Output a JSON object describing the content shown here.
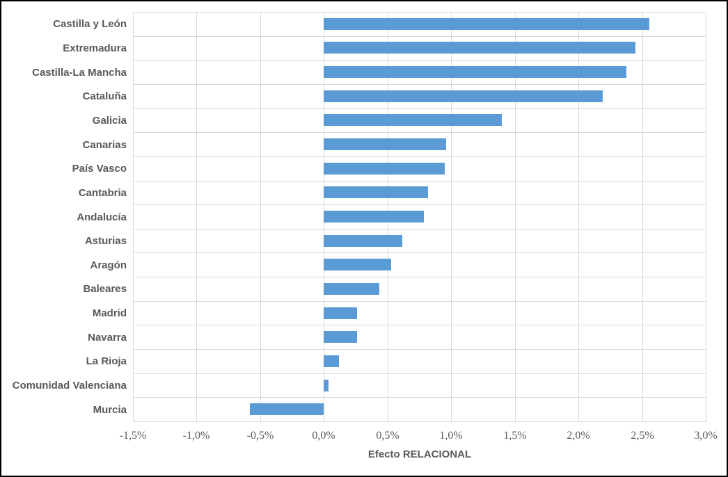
{
  "chart_data": {
    "type": "bar",
    "orientation": "horizontal",
    "title": "",
    "xlabel": "Efecto RELACIONAL",
    "ylabel": "",
    "unit": "%",
    "decimal_separator": ",",
    "categories": [
      "Castilla y León",
      "Extremadura",
      "Castilla-La Mancha",
      "Cataluña",
      "Galicia",
      "Canarias",
      "País Vasco",
      "Cantabria",
      "Andalucía",
      "Asturias",
      "Aragón",
      "Baleares",
      "Madrid",
      "Navarra",
      "La Rioja",
      "Comunidad Valenciana",
      "Murcia"
    ],
    "values": [
      2.56,
      2.45,
      2.38,
      2.19,
      1.4,
      0.96,
      0.95,
      0.82,
      0.79,
      0.62,
      0.53,
      0.44,
      0.26,
      0.26,
      0.12,
      0.04,
      -0.58
    ],
    "xlim": [
      -1.5,
      3.0
    ],
    "xtick_values": [
      -1.5,
      -1.0,
      -0.5,
      0.0,
      0.5,
      1.0,
      1.5,
      2.0,
      2.5,
      3.0
    ],
    "xtick_labels": [
      "-1,5%",
      "-1,0%",
      "-0,5%",
      "0,0%",
      "0,5%",
      "1,0%",
      "1,5%",
      "2,0%",
      "2,5%",
      "3,0%"
    ],
    "grid": true,
    "legend": false,
    "colors": {
      "bar": "#5B9BD5",
      "gridline": "#D9D9D9",
      "text": "#595959",
      "frame_border": "#000000",
      "background": "#FFFFFF"
    }
  }
}
